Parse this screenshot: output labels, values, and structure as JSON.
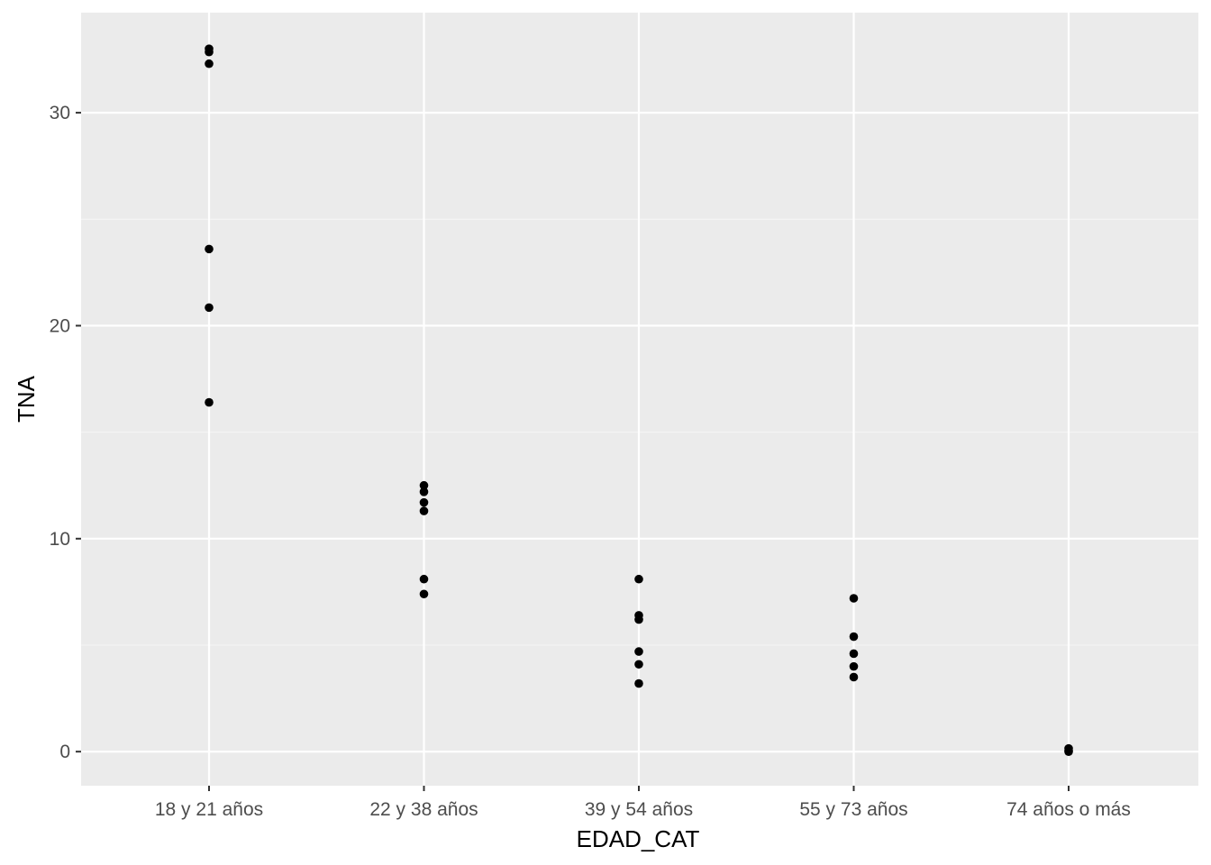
{
  "chart_data": {
    "type": "scatter",
    "xlabel": "EDAD_CAT",
    "ylabel": "TNA",
    "categories": [
      "18 y 21 años",
      "22 y 38 años",
      "39 y 54 años",
      "55 y 73 años",
      "74 años o más"
    ],
    "y_ticks": [
      0,
      10,
      20,
      30
    ],
    "ylim": [
      -1.6,
      34.7
    ],
    "grid": true,
    "colors": {
      "panel_background": "#ebebeb",
      "grid_major": "#ffffff",
      "grid_minor": "#f5f5f5",
      "points": "#000000"
    },
    "series": [
      {
        "points": [
          {
            "x": "18 y 21 años",
            "y": 33.0
          },
          {
            "x": "18 y 21 años",
            "y": 32.85
          },
          {
            "x": "18 y 21 años",
            "y": 32.3
          },
          {
            "x": "18 y 21 años",
            "y": 23.6
          },
          {
            "x": "18 y 21 años",
            "y": 20.85
          },
          {
            "x": "18 y 21 años",
            "y": 16.4
          },
          {
            "x": "22 y 38 años",
            "y": 12.5
          },
          {
            "x": "22 y 38 años",
            "y": 12.2
          },
          {
            "x": "22 y 38 años",
            "y": 11.7
          },
          {
            "x": "22 y 38 años",
            "y": 11.3
          },
          {
            "x": "22 y 38 años",
            "y": 8.1
          },
          {
            "x": "22 y 38 años",
            "y": 7.4
          },
          {
            "x": "39 y 54 años",
            "y": 8.1
          },
          {
            "x": "39 y 54 años",
            "y": 6.4
          },
          {
            "x": "39 y 54 años",
            "y": 6.2
          },
          {
            "x": "39 y 54 años",
            "y": 4.7
          },
          {
            "x": "39 y 54 años",
            "y": 4.1
          },
          {
            "x": "39 y 54 años",
            "y": 3.2
          },
          {
            "x": "55 y 73 años",
            "y": 7.2
          },
          {
            "x": "55 y 73 años",
            "y": 5.4
          },
          {
            "x": "55 y 73 años",
            "y": 4.6
          },
          {
            "x": "55 y 73 años",
            "y": 4.0
          },
          {
            "x": "55 y 73 años",
            "y": 3.5
          },
          {
            "x": "74 años o más",
            "y": 0.15
          },
          {
            "x": "74 años o más",
            "y": 0.05
          },
          {
            "x": "74 años o más",
            "y": 0.0
          }
        ]
      }
    ]
  }
}
